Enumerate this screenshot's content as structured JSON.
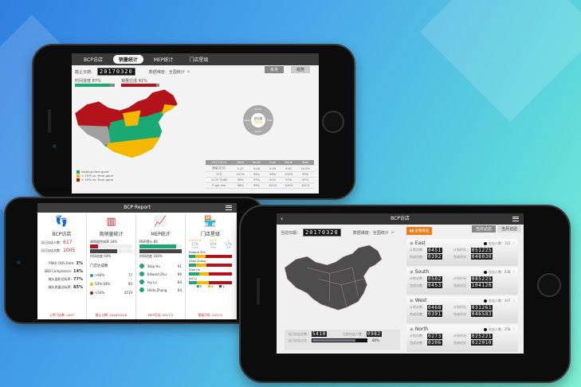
{
  "colors": {
    "green": "#1aa873",
    "yellow": "#f5b800",
    "red": "#b3141b",
    "grey": "#9b9b9b",
    "orange": "#f07d1a"
  },
  "sales_screen": {
    "tabs": [
      {
        "label": "BCP访店"
      },
      {
        "label": "销量统计",
        "active": true
      },
      {
        "label": "MEP统计"
      },
      {
        "label": "门店星级"
      }
    ],
    "date_label": "截止日期：",
    "date": "20170320",
    "dimension": "数据维度：全国统计",
    "segments": [
      "本月",
      "趋势"
    ],
    "time_progress": {
      "label": "时间进度 87%",
      "value": 87
    },
    "sales_achieved": {
      "label": "销量达成 91%",
      "value": 91
    },
    "legend": [
      "leading time gone",
      "< 10% vs. time gone",
      "> 10% vs. time gone"
    ],
    "sunburst": {
      "center_label": "总达成",
      "center_value": "91%",
      "regions": [
        "North",
        "East",
        "South",
        "West"
      ]
    },
    "table": [
      [
        "2017/3/20",
        "West",
        "South",
        "East",
        "North",
        "Total"
      ],
      [
        "销量(亿元)",
        "1.07",
        "4.48",
        "3.29",
        "6.67",
        "15.2%"
      ],
      [
        "YTD",
        "101%",
        "99%",
        "96%",
        "103%",
        "99%"
      ],
      [
        "% OF PLAN",
        "98%",
        "97%",
        "91%",
        "97%",
        "97%"
      ],
      [
        "P per mio",
        "98%",
        "99%",
        "101%",
        "100%",
        "101%"
      ]
    ]
  },
  "report_screen": {
    "title": "BCP Report",
    "bcp": {
      "title": "BCP访店",
      "visitors_label": "当日访店人数：",
      "visitors": "617",
      "visits_label": "当日访店次数：",
      "visits": "1005",
      "kpis": [
        {
          "label": "PSKU OOS Rate:",
          "value": "3%"
        },
        {
          "label": "SBD Compliance:",
          "value": "14%"
        },
        {
          "label": "端头面积达标率:",
          "value": "77%"
        },
        {
          "label": "端头质量达标率:",
          "value": "85%"
        }
      ],
      "footer": "上传门店数: 4497"
    },
    "weekly": {
      "title": "周销量统计",
      "completion_label": "周销量完成率 18%",
      "completion": 18,
      "time_label": "时间进度 64%",
      "time": 64,
      "stores_title": "门店达成数",
      "tiers": [
        {
          "label": ">64%",
          "value": "77",
          "color": "#1aa873"
        },
        {
          "label": "54%-64%",
          "value": "90",
          "color": "#f5b800"
        },
        {
          "label": "<54%",
          "value": "4519",
          "color": "#b3141b"
        }
      ],
      "footer": "截止日期: 2016/03/16"
    },
    "mep": {
      "title": "MEP统计",
      "score_label": "MEP得分 86",
      "score": 86,
      "time_label": "时间进度 100%",
      "time": 100,
      "people": [
        {
          "name": "Stop Hu",
          "score": "91"
        },
        {
          "name": "Edward Zhu",
          "score": "89"
        },
        {
          "name": "Ivy Lu",
          "score": "84"
        },
        {
          "name": "Hilda Zhang",
          "score": "84"
        }
      ],
      "footer": "MEP月份: 2017/2"
    },
    "stars": {
      "title": "门店星级",
      "levels": [
        {
          "stars": "★★★★★",
          "pct": "17%",
          "delta": "+2%"
        },
        {
          "stars": "★★★",
          "pct": "26%",
          "delta": "+0%"
        },
        {
          "stars": "★",
          "pct": "57%",
          "delta": "-2%"
        }
      ],
      "people": [
        {
          "name": "Edward Zhu",
          "split": [
            15,
            24,
            61
          ]
        },
        {
          "name": "Hilda Zhang",
          "split": [
            16,
            24,
            60
          ]
        },
        {
          "name": "Stop Hu",
          "split": [
            24,
            22,
            54
          ]
        },
        {
          "name": "Ivy Lu",
          "split": [
            19,
            27,
            54
          ]
        }
      ],
      "legend": [
        "5",
        "3",
        "1"
      ],
      "footer": "星级月份: 2017/2"
    }
  },
  "visit_screen": {
    "title": "BCP访店",
    "date_label": "当前日期：",
    "date": "20170320",
    "dimension": "数据维度：全国统计",
    "rank_button": "查看排名",
    "tabs": [
      "当日访店",
      "当月访店"
    ],
    "regions": [
      {
        "name": "East",
        "instore_label": "在店人数：312",
        "plan_visits": "0451",
        "plan_time": "051225",
        "done_visits": "0392",
        "done_time": "048030"
      },
      {
        "name": "South",
        "instore_label": "在店人数：438",
        "plan_visits": "0502",
        "plan_time": "085225",
        "done_visits": "0453",
        "done_time": "104120"
      },
      {
        "name": "West",
        "instore_label": "在店人数：347",
        "plan_visits": "0468",
        "plan_time": "031261",
        "done_visits": "0391",
        "done_time": "046583"
      },
      {
        "name": "North",
        "instore_label": "在店人数：258",
        "plan_visits": "0273",
        "plan_time": "025221",
        "done_visits": "0206",
        "done_time": "022010"
      }
    ],
    "labels": {
      "plan_visits": "计划次数：",
      "plan_time": "计划时长：",
      "done_visits": "完成次数：",
      "done_time": "完成时长："
    },
    "summary": {
      "visits_label": "当日访店次数：",
      "visits": "5410",
      "instore_label": "当前在店人数：",
      "instore": "0982",
      "ratio_label": "当日访店占比",
      "ratio": "80%",
      "ratio_value": 80
    }
  }
}
